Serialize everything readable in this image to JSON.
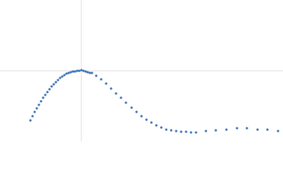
{
  "chart_data": {
    "type": "scatter",
    "color": "#3a6fba",
    "xlim": [
      0,
      4
    ],
    "ylim": [
      0,
      2
    ],
    "crosshair": {
      "x": 1.15,
      "y": 1.0
    },
    "x": [
      0.43,
      0.46,
      0.49,
      0.52,
      0.55,
      0.58,
      0.61,
      0.64,
      0.67,
      0.7,
      0.73,
      0.76,
      0.79,
      0.82,
      0.85,
      0.88,
      0.91,
      0.94,
      0.97,
      1.0,
      1.03,
      1.06,
      1.09,
      1.12,
      1.15,
      1.18,
      1.21,
      1.24,
      1.27,
      1.3,
      1.36,
      1.43,
      1.5,
      1.57,
      1.64,
      1.71,
      1.78,
      1.86,
      1.93,
      2.0,
      2.07,
      2.14,
      2.21,
      2.28,
      2.35,
      2.42,
      2.49,
      2.56,
      2.63,
      2.7,
      2.77,
      2.91,
      3.05,
      3.2,
      3.35,
      3.49,
      3.64,
      3.78,
      3.93
    ],
    "values": [
      0.3,
      0.36,
      0.42,
      0.47,
      0.52,
      0.57,
      0.62,
      0.66,
      0.7,
      0.74,
      0.78,
      0.81,
      0.84,
      0.87,
      0.9,
      0.92,
      0.94,
      0.96,
      0.97,
      0.98,
      0.99,
      0.99,
      1.0,
      1.0,
      1.01,
      1.0,
      0.99,
      0.98,
      0.97,
      0.97,
      0.93,
      0.88,
      0.82,
      0.75,
      0.68,
      0.62,
      0.55,
      0.48,
      0.42,
      0.36,
      0.31,
      0.27,
      0.23,
      0.2,
      0.17,
      0.16,
      0.15,
      0.14,
      0.14,
      0.13,
      0.13,
      0.15,
      0.16,
      0.17,
      0.19,
      0.19,
      0.17,
      0.17,
      0.15
    ]
  }
}
